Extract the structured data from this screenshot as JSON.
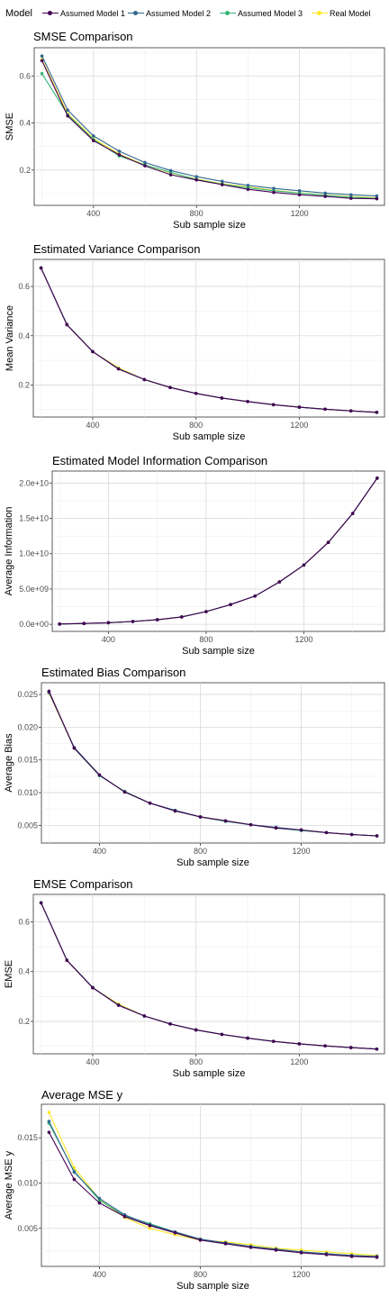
{
  "legend": {
    "title": "Model",
    "items": [
      {
        "name": "Assumed Model 1",
        "color": "#440154"
      },
      {
        "name": "Assumed Model 2",
        "color": "#31688e"
      },
      {
        "name": "Assumed Model 3",
        "color": "#35b779"
      },
      {
        "name": "Real Model",
        "color": "#fde725"
      }
    ]
  },
  "chart_data": [
    {
      "type": "line",
      "title": "SMSE Comparison",
      "xlabel": "Sub sample size",
      "ylabel": "SMSE",
      "xlim": [
        170,
        1530
      ],
      "ylim": [
        0.05,
        0.72
      ],
      "xticks": [
        400,
        800,
        1200
      ],
      "yticks": [
        0.2,
        0.4,
        0.6
      ],
      "ytick_labels": [
        "0.2",
        "0.4",
        "0.6"
      ],
      "x": [
        200,
        300,
        400,
        500,
        600,
        700,
        800,
        900,
        1000,
        1100,
        1200,
        1300,
        1400,
        1500
      ],
      "series": [
        {
          "name": "Assumed Model 1",
          "values": [
            0.665,
            0.43,
            0.325,
            0.265,
            0.218,
            0.18,
            0.158,
            0.138,
            0.118,
            0.105,
            0.095,
            0.088,
            0.08,
            0.078
          ]
        },
        {
          "name": "Assumed Model 2",
          "values": [
            0.685,
            0.455,
            0.345,
            0.28,
            0.232,
            0.198,
            0.172,
            0.152,
            0.135,
            0.122,
            0.112,
            0.102,
            0.095,
            0.09
          ]
        },
        {
          "name": "Assumed Model 3",
          "values": [
            0.61,
            0.435,
            0.33,
            0.26,
            0.222,
            0.19,
            0.16,
            0.14,
            0.125,
            0.112,
            0.102,
            0.093,
            0.085,
            0.08
          ]
        },
        {
          "name": "Real Model",
          "values": [
            0.67,
            0.44,
            0.335,
            0.268,
            0.222,
            0.188,
            0.162,
            0.142,
            0.128,
            0.114,
            0.103,
            0.094,
            0.087,
            0.082
          ]
        }
      ],
      "grid": true,
      "legend": "top"
    },
    {
      "type": "line",
      "title": "Estimated Variance Comparison",
      "xlabel": "Sub sample size",
      "ylabel": "Mean Variance",
      "xlim": [
        170,
        1530
      ],
      "ylim": [
        0.07,
        0.71
      ],
      "xticks": [
        400,
        800,
        1200
      ],
      "yticks": [
        0.2,
        0.4,
        0.6
      ],
      "ytick_labels": [
        "0.2",
        "0.4",
        "0.6"
      ],
      "x": [
        200,
        300,
        400,
        500,
        600,
        700,
        800,
        900,
        1000,
        1100,
        1200,
        1300,
        1400,
        1500
      ],
      "series": [
        {
          "name": "Assumed Model 1",
          "values": [
            0.675,
            0.445,
            0.335,
            0.265,
            0.222,
            0.19,
            0.166,
            0.147,
            0.133,
            0.12,
            0.11,
            0.102,
            0.095,
            0.089
          ]
        },
        {
          "name": "Assumed Model 2",
          "values": [
            0.675,
            0.445,
            0.336,
            0.266,
            0.222,
            0.19,
            0.166,
            0.147,
            0.133,
            0.12,
            0.11,
            0.102,
            0.095,
            0.089
          ]
        },
        {
          "name": "Assumed Model 3",
          "values": [
            0.676,
            0.446,
            0.336,
            0.266,
            0.222,
            0.19,
            0.166,
            0.147,
            0.133,
            0.12,
            0.11,
            0.102,
            0.095,
            0.089
          ]
        },
        {
          "name": "Real Model",
          "values": [
            0.675,
            0.445,
            0.335,
            0.27,
            0.222,
            0.19,
            0.166,
            0.147,
            0.133,
            0.12,
            0.11,
            0.102,
            0.095,
            0.089
          ]
        }
      ],
      "grid": true,
      "legend": "top"
    },
    {
      "type": "line",
      "title": "Estimated Model Information Comparison",
      "xlabel": "Sub sample size",
      "ylabel": "Average Information",
      "xlim": [
        170,
        1530
      ],
      "ylim": [
        -1000000000,
        21700000000
      ],
      "xticks": [
        400,
        800,
        1200
      ],
      "yticks": [
        0,
        5000000000,
        10000000000,
        15000000000,
        20000000000
      ],
      "ytick_labels": [
        "0.0e+00",
        "5.0e+09",
        "1.0e+10",
        "1.5e+10",
        "2.0e+10"
      ],
      "x": [
        200,
        300,
        400,
        500,
        600,
        700,
        800,
        900,
        1000,
        1100,
        1200,
        1300,
        1400,
        1500
      ],
      "series": [
        {
          "name": "Assumed Model 1",
          "values": [
            40000000,
            120000000,
            230000000,
            400000000,
            650000000,
            1050000000,
            1800000000,
            2800000000,
            4000000000,
            6000000000,
            8400000000,
            11600000000,
            15700000000,
            20700000000
          ]
        },
        {
          "name": "Assumed Model 2",
          "values": [
            40000000,
            120000000,
            230000000,
            400000000,
            650000000,
            1050000000,
            1800000000,
            2800000000,
            4000000000,
            6000000000,
            8400000000,
            11600000000,
            15700000000,
            20700000000
          ]
        },
        {
          "name": "Assumed Model 3",
          "values": [
            40000000,
            120000000,
            230000000,
            400000000,
            650000000,
            1050000000,
            1800000000,
            2800000000,
            4000000000,
            6000000000,
            8400000000,
            11600000000,
            15700000000,
            20700000000
          ]
        },
        {
          "name": "Real Model",
          "values": [
            40000000,
            120000000,
            230000000,
            400000000,
            650000000,
            1050000000,
            1800000000,
            2800000000,
            4000000000,
            6000000000,
            8400000000,
            11600000000,
            15700000000,
            20700000000
          ]
        }
      ],
      "grid": true,
      "legend": "top"
    },
    {
      "type": "line",
      "title": "Estimated Bias Comparison",
      "xlabel": "Sub sample size",
      "ylabel": "Average Bias",
      "xlim": [
        170,
        1530
      ],
      "ylim": [
        0.0023,
        0.0268
      ],
      "xticks": [
        400,
        800,
        1200
      ],
      "yticks": [
        0.005,
        0.01,
        0.015,
        0.02,
        0.025
      ],
      "ytick_labels": [
        "0.005",
        "0.010",
        "0.015",
        "0.020",
        "0.025"
      ],
      "x": [
        200,
        300,
        400,
        500,
        600,
        700,
        800,
        900,
        1000,
        1100,
        1200,
        1300,
        1400,
        1500
      ],
      "series": [
        {
          "name": "Assumed Model 1",
          "values": [
            0.0255,
            0.0168,
            0.0127,
            0.0101,
            0.0084,
            0.0072,
            0.0063,
            0.0057,
            0.0051,
            0.0046,
            0.0043,
            0.0039,
            0.0036,
            0.0034
          ]
        },
        {
          "name": "Assumed Model 2",
          "values": [
            0.0253,
            0.0169,
            0.0127,
            0.0101,
            0.0084,
            0.0073,
            0.0063,
            0.0057,
            0.0051,
            0.0047,
            0.0043,
            0.0039,
            0.0036,
            0.0034
          ]
        },
        {
          "name": "Assumed Model 3",
          "values": [
            0.0254,
            0.0168,
            0.0126,
            0.0102,
            0.0084,
            0.0072,
            0.0063,
            0.0056,
            0.0051,
            0.0046,
            0.0042,
            0.0039,
            0.0036,
            0.0034
          ]
        },
        {
          "name": "Real Model",
          "values": [
            0.0252,
            0.0168,
            0.0127,
            0.0101,
            0.0084,
            0.0072,
            0.0063,
            0.0057,
            0.0051,
            0.0046,
            0.0043,
            0.0039,
            0.0036,
            0.0034
          ]
        }
      ],
      "grid": true,
      "legend": "top"
    },
    {
      "type": "line",
      "title": "EMSE Comparison",
      "xlabel": "Sub sample size",
      "ylabel": "EMSE",
      "xlim": [
        170,
        1530
      ],
      "ylim": [
        0.07,
        0.71
      ],
      "xticks": [
        400,
        800,
        1200
      ],
      "yticks": [
        0.2,
        0.4,
        0.6
      ],
      "ytick_labels": [
        "0.2",
        "0.4",
        "0.6"
      ],
      "x": [
        200,
        300,
        400,
        500,
        600,
        700,
        800,
        900,
        1000,
        1100,
        1200,
        1300,
        1400,
        1500
      ],
      "series": [
        {
          "name": "Assumed Model 1",
          "values": [
            0.676,
            0.445,
            0.335,
            0.265,
            0.222,
            0.19,
            0.166,
            0.148,
            0.133,
            0.12,
            0.11,
            0.102,
            0.095,
            0.089
          ]
        },
        {
          "name": "Assumed Model 2",
          "values": [
            0.676,
            0.446,
            0.336,
            0.266,
            0.222,
            0.19,
            0.166,
            0.148,
            0.133,
            0.12,
            0.11,
            0.102,
            0.095,
            0.089
          ]
        },
        {
          "name": "Assumed Model 3",
          "values": [
            0.677,
            0.446,
            0.336,
            0.266,
            0.222,
            0.19,
            0.166,
            0.148,
            0.133,
            0.12,
            0.11,
            0.102,
            0.095,
            0.089
          ]
        },
        {
          "name": "Real Model",
          "values": [
            0.676,
            0.445,
            0.335,
            0.27,
            0.222,
            0.19,
            0.166,
            0.148,
            0.133,
            0.12,
            0.11,
            0.102,
            0.095,
            0.089
          ]
        }
      ],
      "grid": true,
      "legend": "top"
    },
    {
      "type": "line",
      "title": "Average MSE y",
      "xlabel": "Sub sample size",
      "ylabel": "Average MSE y",
      "xlim": [
        170,
        1530
      ],
      "ylim": [
        0.0008,
        0.0187
      ],
      "xticks": [
        400,
        800,
        1200
      ],
      "yticks": [
        0.005,
        0.01,
        0.015
      ],
      "ytick_labels": [
        "0.005",
        "0.010",
        "0.015"
      ],
      "x": [
        200,
        300,
        400,
        500,
        600,
        700,
        800,
        900,
        1000,
        1100,
        1200,
        1300,
        1400,
        1500
      ],
      "series": [
        {
          "name": "Assumed Model 1",
          "values": [
            0.0156,
            0.0104,
            0.0078,
            0.0063,
            0.0053,
            0.0045,
            0.0037,
            0.0033,
            0.0029,
            0.0026,
            0.0023,
            0.0021,
            0.0019,
            0.0018
          ]
        },
        {
          "name": "Assumed Model 2",
          "values": [
            0.0168,
            0.0112,
            0.0083,
            0.0065,
            0.0054,
            0.0046,
            0.0038,
            0.0034,
            0.003,
            0.0027,
            0.0024,
            0.0022,
            0.002,
            0.0019
          ]
        },
        {
          "name": "Assumed Model 3",
          "values": [
            0.0166,
            0.0113,
            0.0081,
            0.0064,
            0.0055,
            0.0046,
            0.0038,
            0.0034,
            0.003,
            0.0027,
            0.0024,
            0.0022,
            0.002,
            0.0019
          ]
        },
        {
          "name": "Real Model",
          "values": [
            0.0178,
            0.0117,
            0.0082,
            0.0062,
            0.005,
            0.0043,
            0.0037,
            0.0035,
            0.0032,
            0.0028,
            0.0026,
            0.0024,
            0.0022,
            0.002
          ]
        }
      ],
      "grid": true,
      "legend": "top"
    }
  ]
}
